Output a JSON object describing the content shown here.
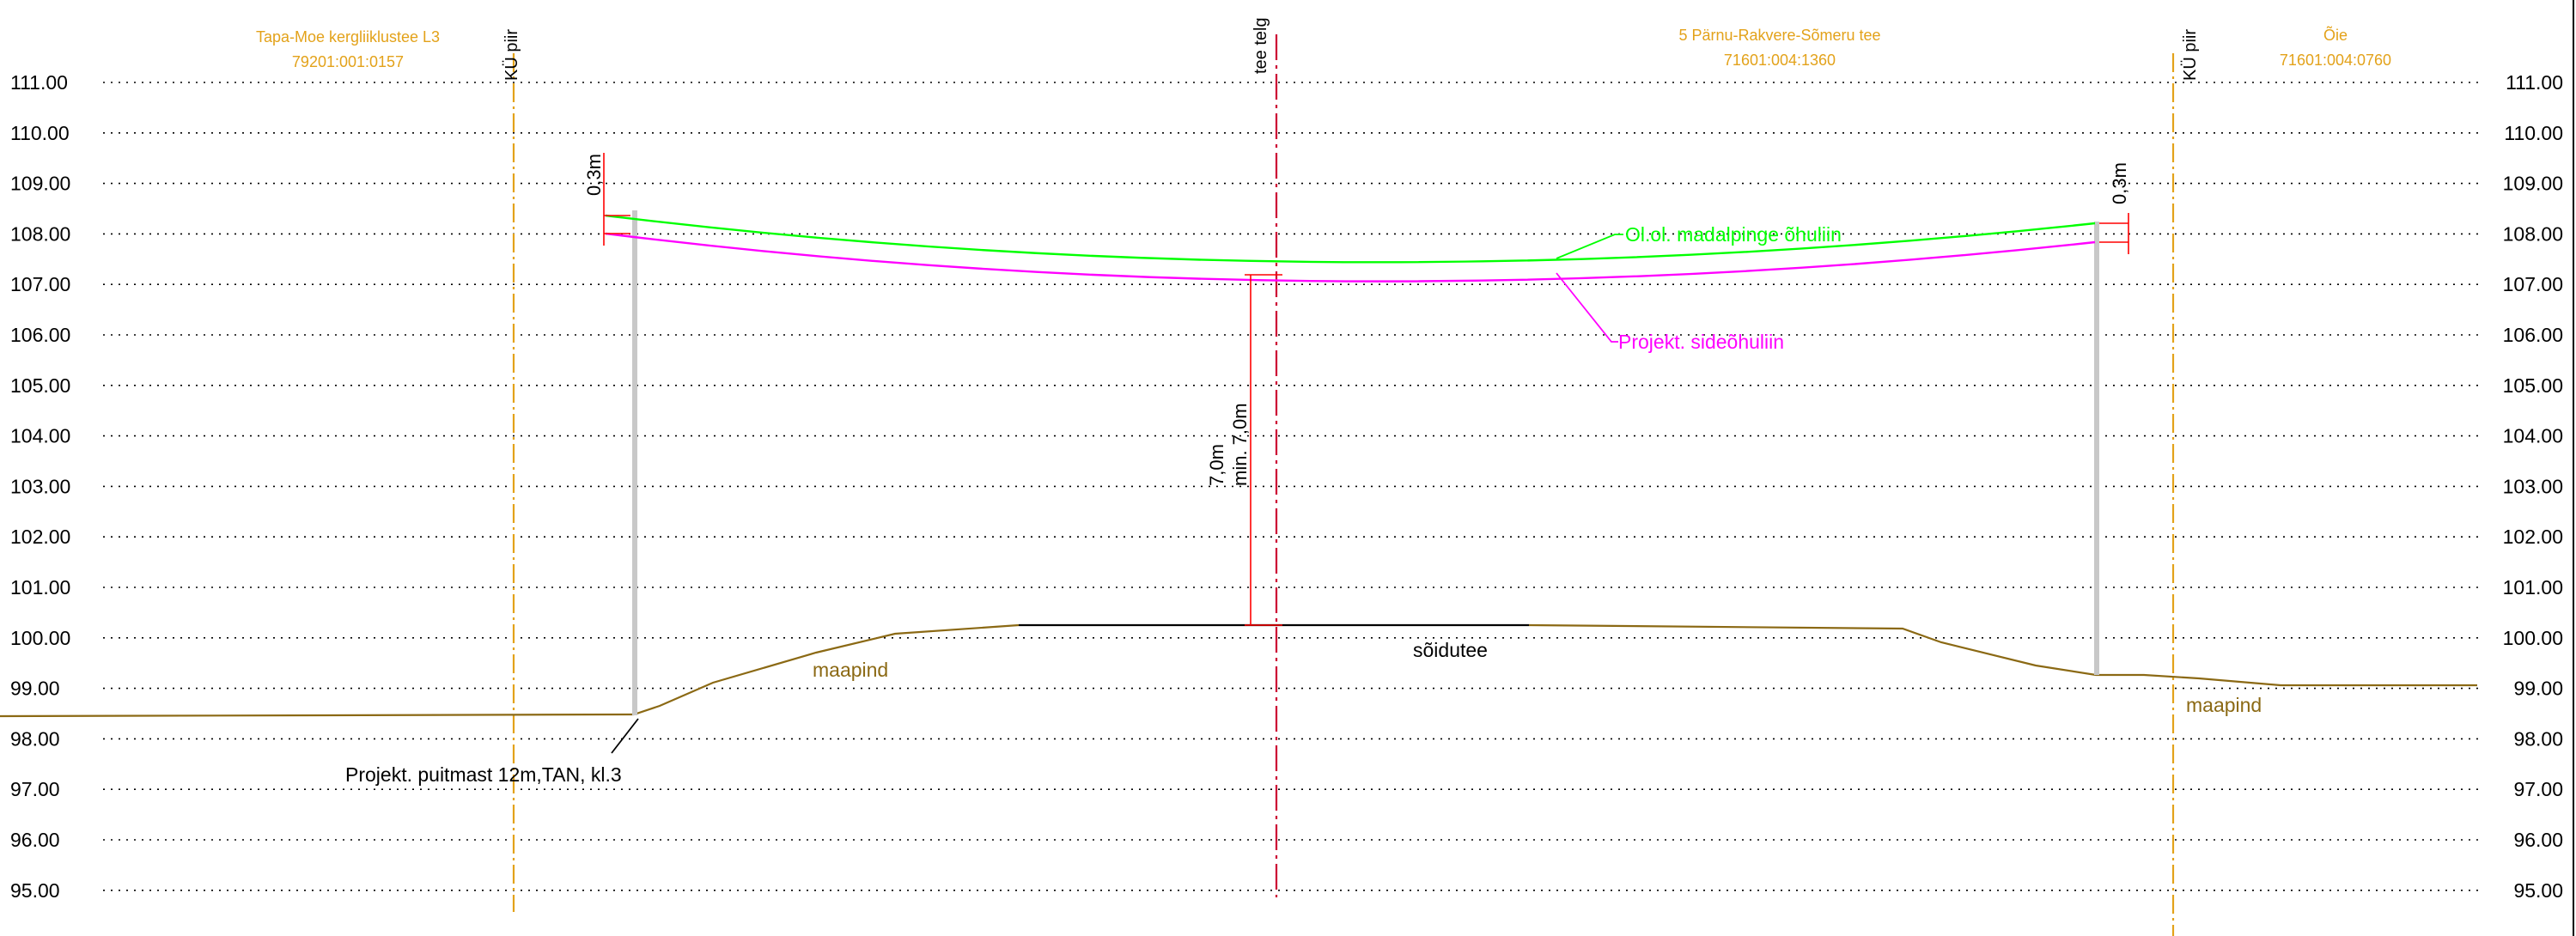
{
  "elevation_ticks": [
    "111.00",
    "110.00",
    "109.00",
    "108.00",
    "107.00",
    "106.00",
    "105.00",
    "104.00",
    "103.00",
    "102.00",
    "101.00",
    "100.00",
    "99.00",
    "98.00",
    "97.00",
    "96.00",
    "95.00"
  ],
  "parcels": {
    "left": {
      "name": "Tapa-Moe kergliiklustee L3",
      "code": "79201:001:0157"
    },
    "middle": {
      "name": "5 Pärnu-Rakvere-Sõmeru tee",
      "code": "71601:004:1360"
    },
    "right": {
      "name": "Õie",
      "code": "71601:004:0760"
    }
  },
  "boundaries": {
    "left": "KÜ piir",
    "right": "KÜ piir"
  },
  "road_axis": "tee telg",
  "lines": {
    "power_line": "Ol.ol. madalpinge õhuliin",
    "comm_line": "Projekt. sideõhuliin"
  },
  "ground": {
    "left": "maapind",
    "right": "maapind"
  },
  "carriageway": "sõidutee",
  "mast": "Projekt. puitmast 12m,TAN, kl.3",
  "clearance": {
    "value": "7,0m",
    "minimum": "min. 7,0m"
  },
  "offsets": {
    "left": "0,3m",
    "right": "0,3m"
  },
  "colors": {
    "power_line": "#00ff00",
    "comm_line": "#ff00ff",
    "ground": "#8b6914",
    "parcel_text": "#e3a21a",
    "axis": "#cc0033",
    "dimension": "#ff0000",
    "mast": "#c8c8c8"
  }
}
